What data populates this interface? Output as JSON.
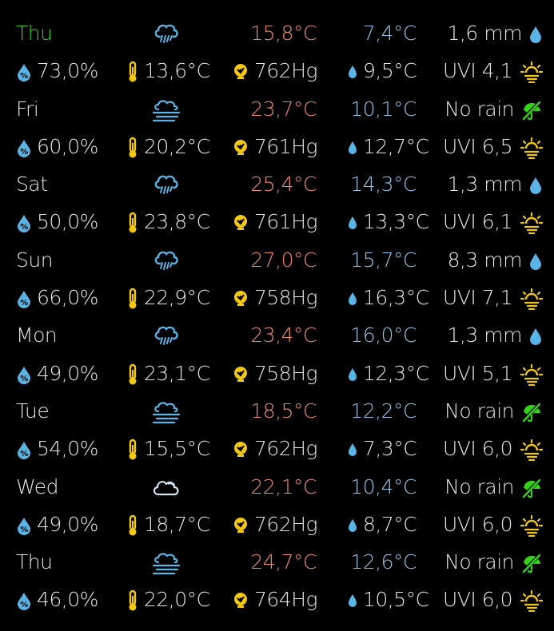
{
  "colors": {
    "today": "#35d21a",
    "high": "#f08a6c",
    "low": "#8fc6e8",
    "text": "#e6e6e6",
    "icon_blue": "#5ab4e6",
    "icon_yellow": "#f2c811",
    "icon_green": "#35d21a"
  },
  "days": [
    {
      "day": "Thu",
      "today": true,
      "condition": "rain-cloud-icon",
      "high": "15,8°C",
      "low": "7,4°C",
      "rain": "1,6 mm",
      "rain_icon": "raindrop-icon",
      "humidity": "73,0%",
      "feels": "13,6°C",
      "pressure": "762Hg",
      "dew": "9,5°C",
      "uvi": "UVI 4,1"
    },
    {
      "day": "Fri",
      "today": false,
      "condition": "fog-cloud-icon",
      "high": "23,7°C",
      "low": "10,1°C",
      "rain": "No rain",
      "rain_icon": "no-umbrella-icon",
      "humidity": "60,0%",
      "feels": "20,2°C",
      "pressure": "761Hg",
      "dew": "12,7°C",
      "uvi": "UVI 6,5"
    },
    {
      "day": "Sat",
      "today": false,
      "condition": "rain-cloud-icon",
      "high": "25,4°C",
      "low": "14,3°C",
      "rain": "1,3 mm",
      "rain_icon": "raindrop-icon",
      "humidity": "50,0%",
      "feels": "23,8°C",
      "pressure": "761Hg",
      "dew": "13,3°C",
      "uvi": "UVI 6,1"
    },
    {
      "day": "Sun",
      "today": false,
      "condition": "rain-cloud-icon",
      "high": "27,0°C",
      "low": "15,7°C",
      "rain": "8,3 mm",
      "rain_icon": "raindrop-icon",
      "humidity": "66,0%",
      "feels": "22,9°C",
      "pressure": "758Hg",
      "dew": "16,3°C",
      "uvi": "UVI 7,1"
    },
    {
      "day": "Mon",
      "today": false,
      "condition": "rain-cloud-icon",
      "high": "23,4°C",
      "low": "16,0°C",
      "rain": "1,3 mm",
      "rain_icon": "raindrop-icon",
      "humidity": "49,0%",
      "feels": "23,1°C",
      "pressure": "758Hg",
      "dew": "12,3°C",
      "uvi": "UVI 5,1"
    },
    {
      "day": "Tue",
      "today": false,
      "condition": "fog-cloud-icon",
      "high": "18,5°C",
      "low": "12,2°C",
      "rain": "No rain",
      "rain_icon": "no-umbrella-icon",
      "humidity": "54,0%",
      "feels": "15,5°C",
      "pressure": "762Hg",
      "dew": "7,3°C",
      "uvi": "UVI 6,0"
    },
    {
      "day": "Wed",
      "today": false,
      "condition": "cloud-icon",
      "high": "22,1°C",
      "low": "10,4°C",
      "rain": "No rain",
      "rain_icon": "no-umbrella-icon",
      "humidity": "49,0%",
      "feels": "18,7°C",
      "pressure": "762Hg",
      "dew": "8,7°C",
      "uvi": "UVI 6,0"
    },
    {
      "day": "Thu",
      "today": false,
      "condition": "fog-cloud-icon",
      "high": "24,7°C",
      "low": "12,6°C",
      "rain": "No rain",
      "rain_icon": "no-umbrella-icon",
      "humidity": "46,0%",
      "feels": "22,0°C",
      "pressure": "764Hg",
      "dew": "10,5°C",
      "uvi": "UVI 6,0"
    }
  ]
}
